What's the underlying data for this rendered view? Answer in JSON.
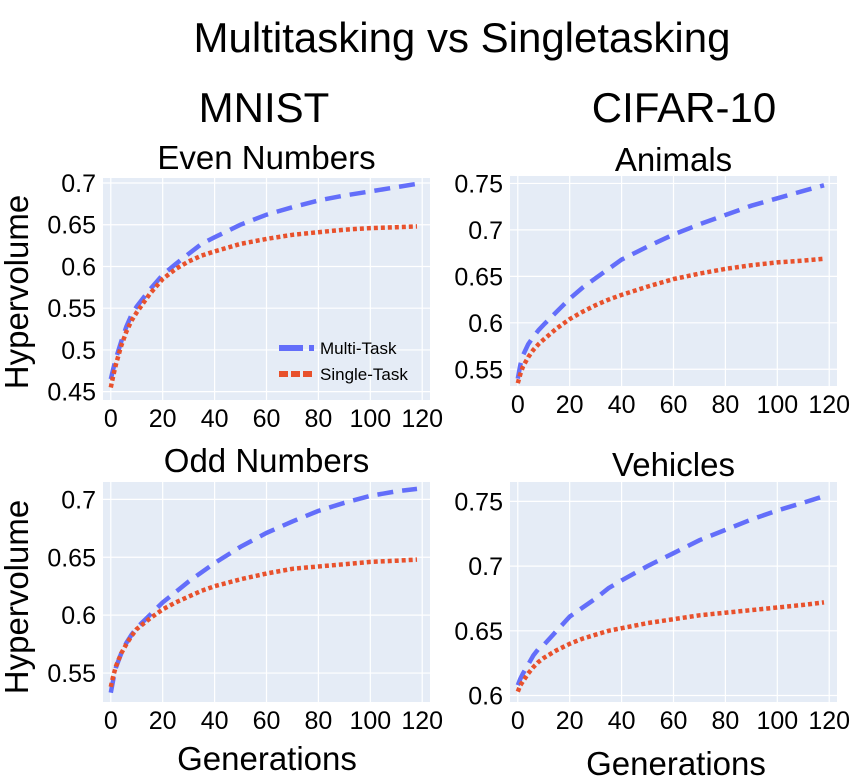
{
  "title": "Multitasking vs Singletasking",
  "column_titles": [
    "MNIST",
    "CIFAR-10"
  ],
  "xlabel": "Generations",
  "ylabel": "Hypervolume",
  "colors": {
    "plot_bg": "#e5ecf6",
    "grid": "#ffffff",
    "multi": "#636efa",
    "single": "#e8512c"
  },
  "legend": {
    "placement": "inside-bottom-right",
    "items": [
      "Multi-Task",
      "Single-Task"
    ]
  },
  "chart_data": [
    {
      "type": "line",
      "title": "Even Numbers",
      "xlim": [
        -3,
        123
      ],
      "ylim": [
        0.44,
        0.706
      ],
      "x_ticks": [
        "0",
        "20",
        "40",
        "60",
        "80",
        "100",
        "120"
      ],
      "y_ticks": [
        "0.45",
        "0.5",
        "0.55",
        "0.6",
        "0.65",
        "0.7"
      ],
      "series": [
        {
          "name": "Multi-Task",
          "style": "dashed",
          "x": [
            0,
            1,
            2,
            4,
            6,
            8,
            10,
            15,
            20,
            25,
            30,
            35,
            40,
            50,
            60,
            70,
            80,
            90,
            100,
            110,
            118
          ],
          "y": [
            0.465,
            0.478,
            0.49,
            0.51,
            0.528,
            0.542,
            0.552,
            0.572,
            0.59,
            0.603,
            0.615,
            0.627,
            0.635,
            0.65,
            0.662,
            0.671,
            0.679,
            0.685,
            0.69,
            0.695,
            0.699
          ]
        },
        {
          "name": "Single-Task",
          "style": "dotted",
          "x": [
            0,
            1,
            2,
            4,
            6,
            8,
            10,
            15,
            20,
            25,
            30,
            35,
            40,
            50,
            60,
            70,
            80,
            90,
            100,
            110,
            118
          ],
          "y": [
            0.455,
            0.47,
            0.483,
            0.505,
            0.522,
            0.535,
            0.545,
            0.567,
            0.585,
            0.597,
            0.606,
            0.613,
            0.618,
            0.627,
            0.633,
            0.638,
            0.641,
            0.644,
            0.646,
            0.647,
            0.648
          ]
        }
      ]
    },
    {
      "type": "line",
      "title": "Animals",
      "xlim": [
        -3,
        123
      ],
      "ylim": [
        0.532,
        0.758
      ],
      "x_ticks": [
        "0",
        "20",
        "40",
        "60",
        "80",
        "100",
        "120"
      ],
      "y_ticks": [
        "0.55",
        "0.6",
        "0.65",
        "0.7",
        "0.75"
      ],
      "series": [
        {
          "name": "Multi-Task",
          "style": "dashed",
          "x": [
            0,
            1,
            2,
            4,
            6,
            8,
            10,
            15,
            20,
            25,
            30,
            35,
            40,
            50,
            60,
            70,
            80,
            90,
            100,
            110,
            118
          ],
          "y": [
            0.54,
            0.555,
            0.565,
            0.577,
            0.585,
            0.592,
            0.598,
            0.612,
            0.626,
            0.638,
            0.648,
            0.658,
            0.668,
            0.682,
            0.695,
            0.706,
            0.716,
            0.726,
            0.734,
            0.742,
            0.748
          ]
        },
        {
          "name": "Single-Task",
          "style": "dotted",
          "x": [
            0,
            1,
            2,
            4,
            6,
            8,
            10,
            15,
            20,
            25,
            30,
            35,
            40,
            50,
            60,
            70,
            80,
            90,
            100,
            110,
            118
          ],
          "y": [
            0.535,
            0.545,
            0.553,
            0.563,
            0.571,
            0.577,
            0.582,
            0.594,
            0.604,
            0.612,
            0.619,
            0.625,
            0.63,
            0.639,
            0.647,
            0.653,
            0.658,
            0.662,
            0.665,
            0.667,
            0.669
          ]
        }
      ]
    },
    {
      "type": "line",
      "title": "Odd Numbers",
      "xlim": [
        -3,
        123
      ],
      "ylim": [
        0.525,
        0.715
      ],
      "x_ticks": [
        "0",
        "20",
        "40",
        "60",
        "80",
        "100",
        "120"
      ],
      "y_ticks": [
        "0.55",
        "0.6",
        "0.65",
        "0.7"
      ],
      "series": [
        {
          "name": "Multi-Task",
          "style": "dashed",
          "x": [
            0,
            1,
            2,
            4,
            6,
            8,
            10,
            15,
            20,
            25,
            30,
            35,
            40,
            50,
            60,
            70,
            80,
            90,
            100,
            110,
            118
          ],
          "y": [
            0.533,
            0.545,
            0.555,
            0.567,
            0.576,
            0.583,
            0.589,
            0.6,
            0.611,
            0.62,
            0.629,
            0.637,
            0.645,
            0.659,
            0.671,
            0.681,
            0.69,
            0.697,
            0.703,
            0.707,
            0.709
          ]
        },
        {
          "name": "Single-Task",
          "style": "dotted",
          "x": [
            0,
            1,
            2,
            4,
            6,
            8,
            10,
            15,
            20,
            25,
            30,
            35,
            40,
            50,
            60,
            70,
            80,
            90,
            100,
            110,
            118
          ],
          "y": [
            0.538,
            0.548,
            0.556,
            0.567,
            0.575,
            0.582,
            0.588,
            0.597,
            0.605,
            0.611,
            0.616,
            0.621,
            0.625,
            0.631,
            0.636,
            0.64,
            0.642,
            0.644,
            0.646,
            0.647,
            0.648
          ]
        }
      ]
    },
    {
      "type": "line",
      "title": "Vehicles",
      "xlim": [
        -3,
        123
      ],
      "ylim": [
        0.595,
        0.765
      ],
      "x_ticks": [
        "0",
        "20",
        "40",
        "60",
        "80",
        "100",
        "120"
      ],
      "y_ticks": [
        "0.6",
        "0.65",
        "0.7",
        "0.75"
      ],
      "series": [
        {
          "name": "Multi-Task",
          "style": "dashed",
          "x": [
            0,
            1,
            2,
            4,
            6,
            8,
            10,
            15,
            20,
            25,
            30,
            35,
            40,
            50,
            60,
            70,
            80,
            90,
            100,
            110,
            118
          ],
          "y": [
            0.608,
            0.613,
            0.617,
            0.624,
            0.631,
            0.636,
            0.639,
            0.65,
            0.661,
            0.668,
            0.675,
            0.683,
            0.689,
            0.7,
            0.71,
            0.72,
            0.728,
            0.736,
            0.743,
            0.749,
            0.754
          ]
        },
        {
          "name": "Single-Task",
          "style": "dotted",
          "x": [
            0,
            1,
            2,
            4,
            6,
            8,
            10,
            15,
            20,
            25,
            30,
            35,
            40,
            50,
            60,
            70,
            80,
            90,
            100,
            110,
            118
          ],
          "y": [
            0.603,
            0.608,
            0.611,
            0.617,
            0.622,
            0.626,
            0.629,
            0.635,
            0.64,
            0.644,
            0.647,
            0.65,
            0.652,
            0.656,
            0.659,
            0.662,
            0.664,
            0.666,
            0.668,
            0.67,
            0.672
          ]
        }
      ]
    }
  ]
}
